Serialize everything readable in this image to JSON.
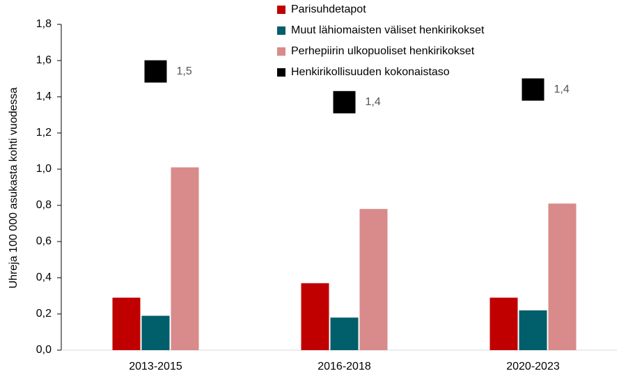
{
  "chart_data": {
    "type": "bar",
    "y_label": "Uhreja 100 000 asukasta kohti vuodessa",
    "categories": [
      "2013-2015",
      "2016-2018",
      "2020-2023"
    ],
    "series": [
      {
        "name": "Parisuhdetapot",
        "color": "#c00000",
        "values": [
          0.29,
          0.37,
          0.29
        ]
      },
      {
        "name": "Muut lähiomaisten väliset henkirikokset",
        "color": "#005f6b",
        "values": [
          0.19,
          0.18,
          0.22
        ]
      },
      {
        "name": "Perhepiirin ulkopuoliset henkirikokset",
        "color": "#d98a8a",
        "values": [
          1.01,
          0.78,
          0.81
        ]
      },
      {
        "name": "Henkirikollisuuden kokonaistaso",
        "color": "#000000",
        "type": "scatter",
        "values": [
          1.54,
          1.37,
          1.44
        ],
        "value_labels": [
          "1,5",
          "1,4",
          "1,4"
        ]
      }
    ],
    "ylim": [
      0,
      1.8
    ],
    "yticks": [
      {
        "value": 0,
        "label": "0,0"
      },
      {
        "value": 0.2,
        "label": "0,2"
      },
      {
        "value": 0.4,
        "label": "0,4"
      },
      {
        "value": 0.6,
        "label": "0,6"
      },
      {
        "value": 0.8,
        "label": "0,8"
      },
      {
        "value": 1.0,
        "label": "1,0"
      },
      {
        "value": 1.2,
        "label": "1,2"
      },
      {
        "value": 1.4,
        "label": "1,4"
      },
      {
        "value": 1.6,
        "label": "1,6"
      },
      {
        "value": 1.8,
        "label": "1,8"
      }
    ],
    "legend": "top"
  }
}
